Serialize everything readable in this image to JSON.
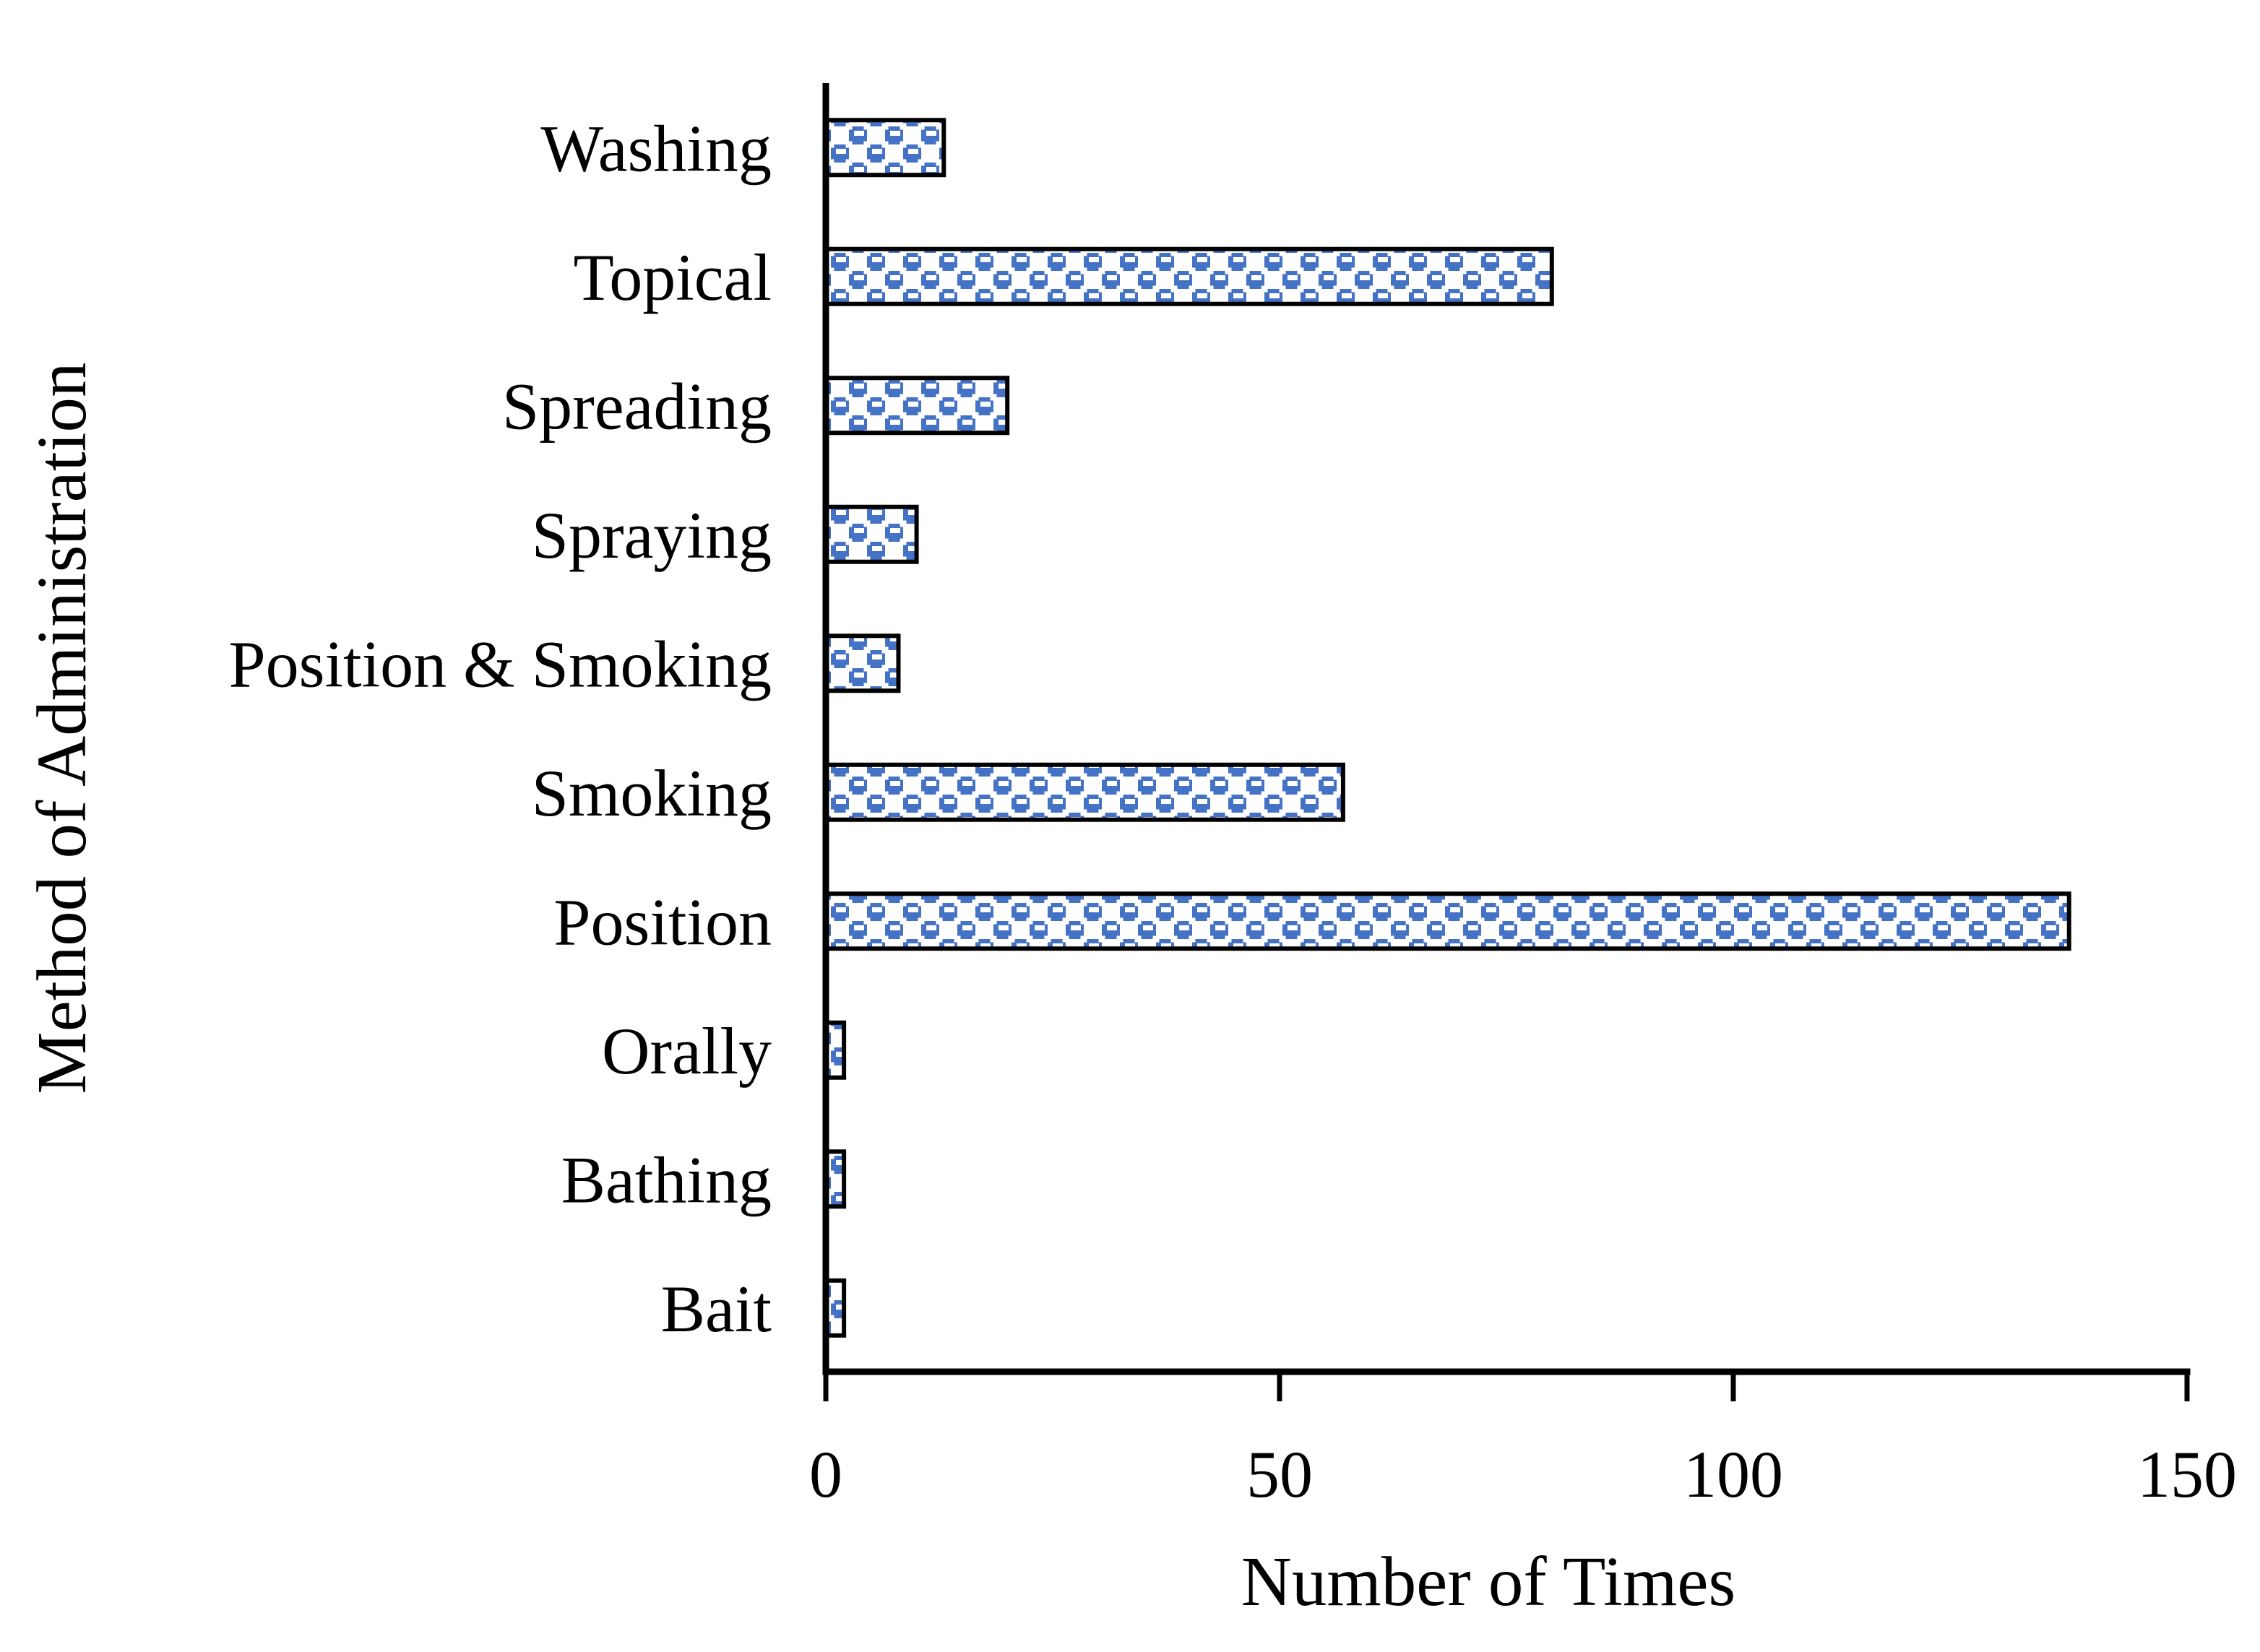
{
  "chart_data": {
    "type": "bar",
    "orientation": "horizontal",
    "title": "",
    "xlabel": "Number of Times",
    "ylabel": "Method of Administration",
    "categories": [
      "Washing",
      "Topical",
      "Spreading",
      "Spraying",
      "Position & Smoking",
      "Smoking",
      "Position",
      "Orally",
      "Bathing",
      "Bait"
    ],
    "values": [
      13,
      80,
      20,
      10,
      8,
      57,
      137,
      2,
      2,
      2
    ],
    "xlim": [
      0,
      150
    ],
    "xticks": [
      "0",
      "50",
      "100",
      "150"
    ],
    "xtick_values": [
      0,
      50,
      100,
      150
    ],
    "grid": false,
    "legend": false,
    "bar_fill_color": "#4472C4",
    "bar_pattern": "blue-white checkerboard weave pattern fill",
    "bar_outline_color": "#000000",
    "axis_color": "#000000",
    "background_color": "#FFFFFF"
  }
}
